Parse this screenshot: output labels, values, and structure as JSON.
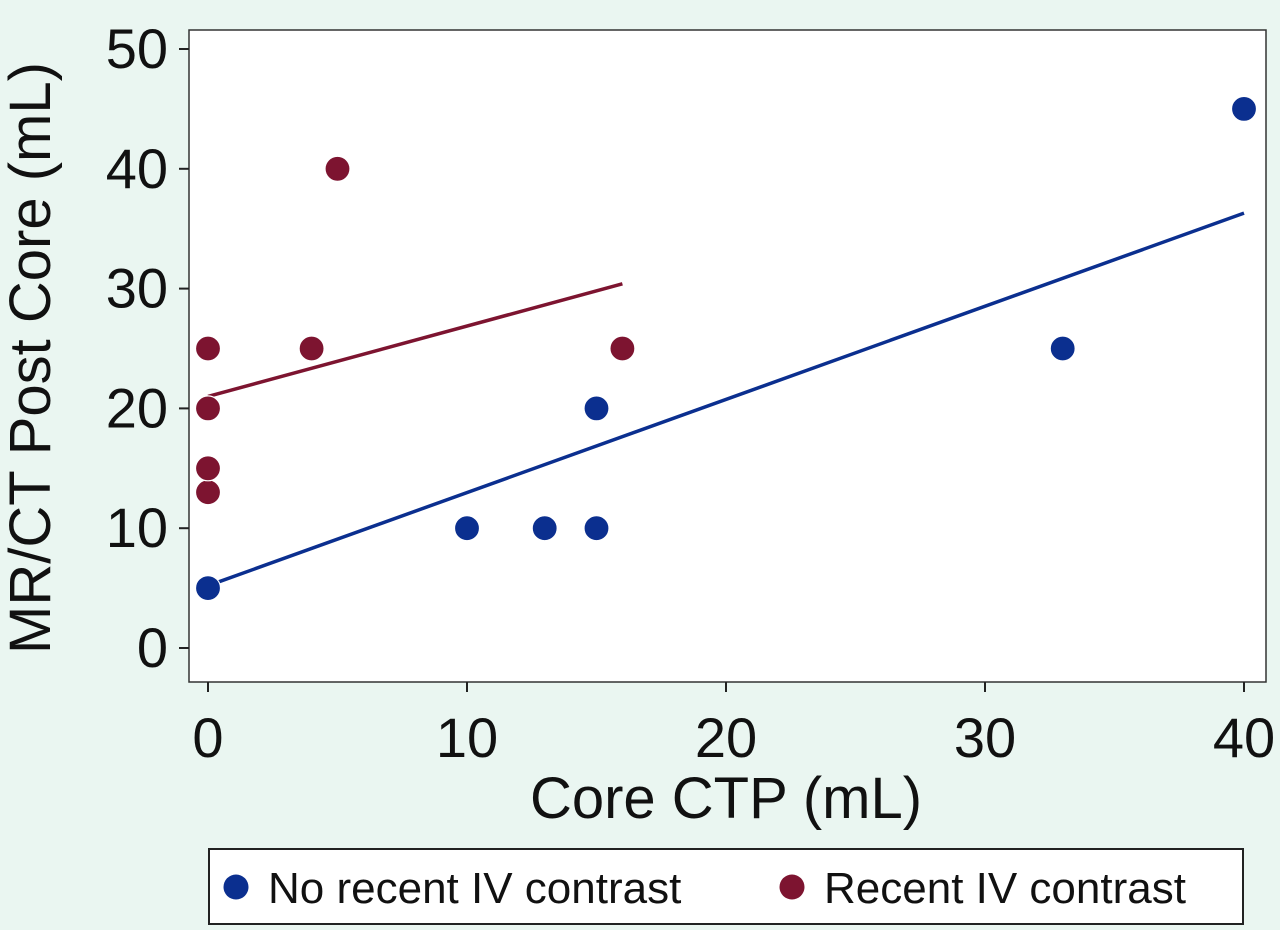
{
  "chart_data": {
    "type": "scatter",
    "title": "",
    "xlabel": "Core CTP (mL)",
    "ylabel": "MR/CT Post Core (mL)",
    "xlim": [
      0,
      40
    ],
    "ylim": [
      0,
      50
    ],
    "x_ticks": [
      0,
      10,
      20,
      30,
      40
    ],
    "y_ticks": [
      0,
      10,
      20,
      30,
      40,
      50
    ],
    "grid": false,
    "legend_position": "bottom",
    "series": [
      {
        "name": "No recent IV contrast",
        "color": "#0b2f8f",
        "points": [
          [
            0,
            5
          ],
          [
            10,
            10
          ],
          [
            13,
            10
          ],
          [
            15,
            10
          ],
          [
            15,
            20
          ],
          [
            33,
            25
          ],
          [
            40,
            45
          ]
        ],
        "fit_line": [
          [
            0,
            5.2
          ],
          [
            40,
            36.3
          ]
        ]
      },
      {
        "name": "Recent IV contrast",
        "color": "#7d1430",
        "points": [
          [
            0,
            13
          ],
          [
            0,
            15
          ],
          [
            0,
            20
          ],
          [
            0,
            25
          ],
          [
            4,
            25
          ],
          [
            5,
            40
          ],
          [
            16,
            25
          ]
        ],
        "fit_line": [
          [
            0,
            21
          ],
          [
            16,
            30.4
          ]
        ]
      }
    ]
  }
}
